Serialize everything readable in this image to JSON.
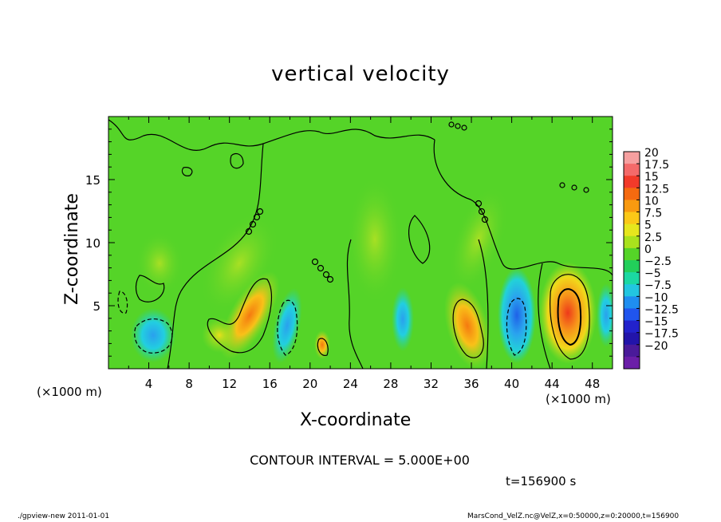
{
  "chart_data": {
    "type": "heatmap",
    "title": "vertical velocity",
    "xlabel": "X-coordinate",
    "ylabel": "Z-coordinate",
    "x_unit_label_left": "(×1000 m)",
    "x_unit_label_right": "(×1000 m)",
    "xlim": [
      0,
      50
    ],
    "ylim": [
      0,
      20
    ],
    "x_ticks": [
      "4",
      "8",
      "12",
      "16",
      "20",
      "24",
      "28",
      "32",
      "36",
      "40",
      "44",
      "48"
    ],
    "x_tick_values": [
      4,
      8,
      12,
      16,
      20,
      24,
      28,
      32,
      36,
      40,
      44,
      48
    ],
    "y_ticks": [
      "5",
      "10",
      "15"
    ],
    "y_tick_values": [
      5,
      10,
      15
    ],
    "contour_interval_text": "CONTOUR INTERVAL = 5.000E+00",
    "time_text": "t=156900 s",
    "colorbar": {
      "labels": [
        "20",
        "17.5",
        "15",
        "12.5",
        "10",
        "7.5",
        "5",
        "2.5",
        "0",
        "−2.5",
        "−5",
        "−7.5",
        "−10",
        "−12.5",
        "−15",
        "−17.5",
        "−20"
      ],
      "colors": [
        "#f6a0a0",
        "#f46a6a",
        "#f23a2a",
        "#f56a10",
        "#f89a10",
        "#fbc817",
        "#e6e61d",
        "#a9e21d",
        "#55d428",
        "#22cf5a",
        "#1bd8a2",
        "#22c6e0",
        "#1f8ef0",
        "#2055ee",
        "#2222cc",
        "#2214aa",
        "#4a1a9a",
        "#6b1ea8"
      ]
    },
    "features": [
      {
        "kind": "updraft",
        "x": 14.0,
        "z": 4.0,
        "peak": 10
      },
      {
        "kind": "updraft",
        "x": 21.0,
        "z": 2.2,
        "peak": 7
      },
      {
        "kind": "updraft",
        "x": 35.0,
        "z": 3.5,
        "peak": 10
      },
      {
        "kind": "updraft",
        "x": 45.5,
        "z": 4.3,
        "peak": 14
      },
      {
        "kind": "downdraft",
        "x": 4.5,
        "z": 2.5,
        "peak": -6
      },
      {
        "kind": "downdraft",
        "x": 18.0,
        "z": 3.0,
        "peak": -5
      },
      {
        "kind": "downdraft",
        "x": 40.5,
        "z": 4.0,
        "peak": -9
      }
    ]
  },
  "footer": {
    "left": "./gpview-new   2011-01-01",
    "right": "MarsCond_VelZ.nc@VelZ,x=0:50000,z=0:20000,t=156900"
  }
}
